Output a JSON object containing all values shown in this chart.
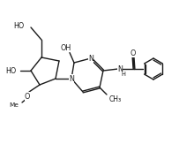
{
  "bg_color": "#ffffff",
  "line_color": "#1a1a1a",
  "line_width": 1.0,
  "font_size": 5.8,
  "figsize": [
    2.2,
    1.8
  ],
  "dpi": 100,
  "xlim": [
    0,
    11
  ],
  "ylim": [
    0,
    9
  ]
}
